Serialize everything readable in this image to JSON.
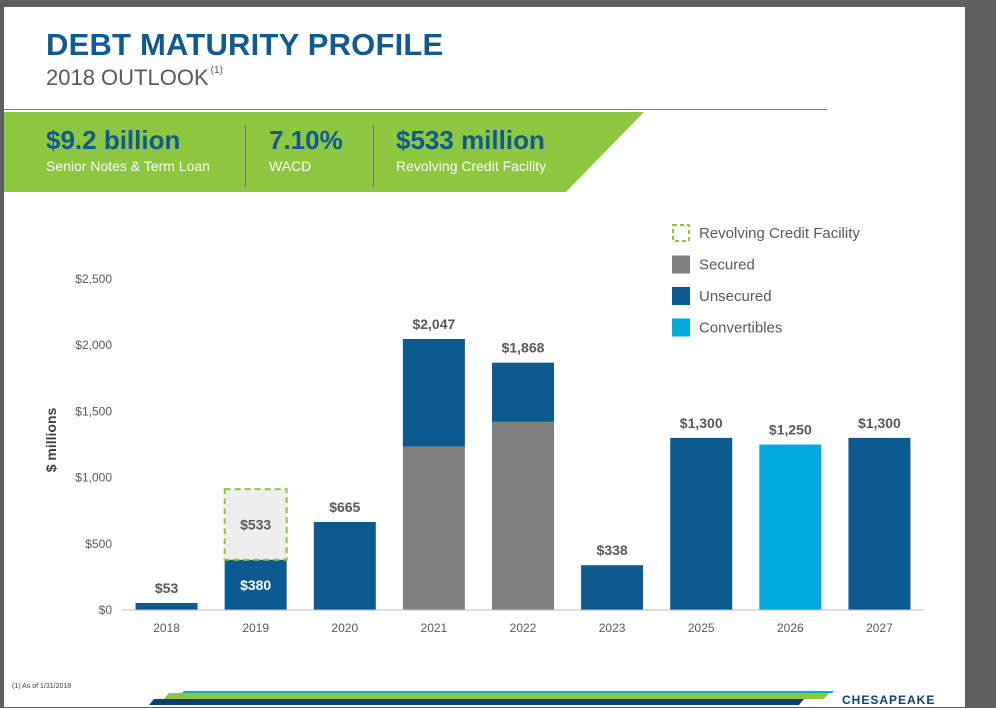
{
  "header": {
    "title": "DEBT MATURITY PROFILE",
    "subtitle": "2018 OUTLOOK",
    "subtitle_note": "(1)"
  },
  "stats": [
    {
      "value": "$9.2 billion",
      "label": "Senior Notes & Term Loan"
    },
    {
      "value": "7.10%",
      "label": "WACD"
    },
    {
      "value": "$533 million",
      "label": "Revolving Credit Facility"
    }
  ],
  "colors": {
    "brand_blue": "#0f5a8e",
    "banner_green": "#8dc63f",
    "secured": "#808080",
    "unsecured": "#0c5a8f",
    "convertibles": "#00aadf",
    "revolver_fill": "#eeeeee",
    "revolver_border": "#8dc63f"
  },
  "chart_data": {
    "type": "bar",
    "stacked": true,
    "ylabel": "$ millions",
    "ylim": [
      0,
      2500
    ],
    "yticks": [
      "$0",
      "$500",
      "$1,000",
      "$1,500",
      "$2,000",
      "$2,500"
    ],
    "categories": [
      "2018",
      "2019",
      "2020",
      "2021",
      "2022",
      "2023",
      "2025",
      "2026",
      "2027"
    ],
    "series": [
      {
        "name": "Secured",
        "color": "#808080",
        "values": [
          0,
          0,
          0,
          1233,
          1421,
          0,
          0,
          0,
          0
        ]
      },
      {
        "name": "Unsecured",
        "color": "#0c5a8f",
        "values": [
          53,
          380,
          665,
          814,
          447,
          338,
          1300,
          0,
          1300
        ]
      },
      {
        "name": "Convertibles",
        "color": "#00aadf",
        "values": [
          0,
          0,
          0,
          0,
          0,
          0,
          0,
          1250,
          0
        ]
      },
      {
        "name": "Revolving Credit Facility",
        "color": "#eeeeee",
        "values": [
          0,
          533,
          0,
          0,
          0,
          0,
          0,
          0,
          0
        ]
      }
    ],
    "data_labels": [
      "$53",
      "",
      "$665",
      "$2,047",
      "$1,868",
      "$338",
      "$1,300",
      "$1,250",
      "$1,300"
    ],
    "inner_labels": {
      "2019": {
        "unsecured": "$380",
        "revolver": "$533"
      }
    },
    "legend": {
      "position": "top-right",
      "entries": [
        {
          "label": "Revolving Credit Facility",
          "style": "dashed"
        },
        {
          "label": "Secured",
          "style": "solid"
        },
        {
          "label": "Unsecured",
          "style": "solid"
        },
        {
          "label": "Convertibles",
          "style": "solid"
        }
      ]
    }
  },
  "footer": {
    "footnote": "(1)  As of 1/31/2018",
    "logo_text": "CHESAPEAKE"
  }
}
